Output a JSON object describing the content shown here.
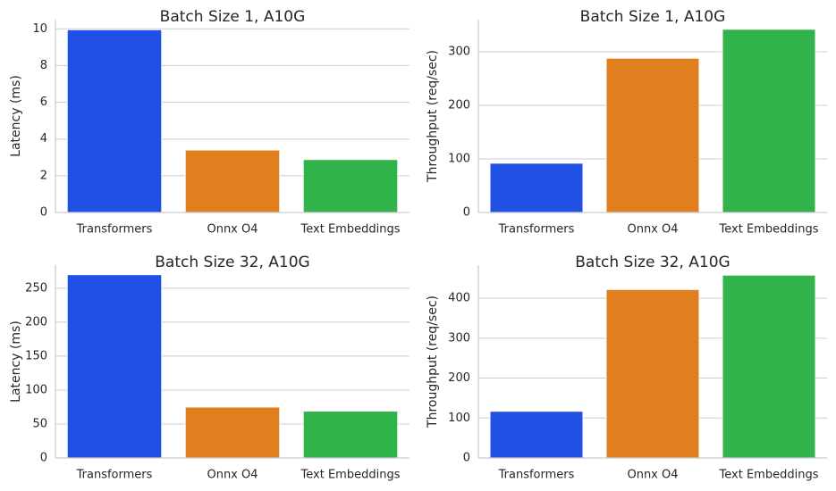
{
  "chart_data": [
    {
      "type": "bar",
      "title": "Batch Size 1, A10G",
      "y_label": "Latency (ms)",
      "categories": [
        "Transformers",
        "Onnx O4",
        "Text Embeddings"
      ],
      "values": [
        9.95,
        3.4,
        2.88
      ],
      "colors": [
        "#2150e4",
        "#e17f1e",
        "#2fb34a"
      ],
      "ylim": [
        0,
        10.5
      ],
      "yticks": [
        0,
        2,
        4,
        6,
        8,
        10
      ],
      "grid": true
    },
    {
      "type": "bar",
      "title": "Batch Size 1, A10G",
      "y_label": "Throughput (req/sec)",
      "categories": [
        "Transformers",
        "Onnx O4",
        "Text Embeddings"
      ],
      "values": [
        92,
        288,
        342
      ],
      "colors": [
        "#2150e4",
        "#e17f1e",
        "#2fb34a"
      ],
      "ylim": [
        0,
        360
      ],
      "yticks": [
        0,
        100,
        200,
        300
      ],
      "grid": true
    },
    {
      "type": "bar",
      "title": "Batch Size 32, A10G",
      "y_label": "Latency (ms)",
      "categories": [
        "Transformers",
        "Onnx O4",
        "Text Embeddings"
      ],
      "values": [
        270,
        75,
        69
      ],
      "colors": [
        "#2150e4",
        "#e17f1e",
        "#2fb34a"
      ],
      "ylim": [
        0,
        284
      ],
      "yticks": [
        0,
        50,
        100,
        150,
        200,
        250
      ],
      "grid": true
    },
    {
      "type": "bar",
      "title": "Batch Size 32, A10G",
      "y_label": "Throughput (req/sec)",
      "categories": [
        "Transformers",
        "Onnx O4",
        "Text Embeddings"
      ],
      "values": [
        117,
        422,
        458
      ],
      "colors": [
        "#2150e4",
        "#e17f1e",
        "#2fb34a"
      ],
      "ylim": [
        0,
        483
      ],
      "yticks": [
        0,
        100,
        200,
        300,
        400
      ],
      "grid": true
    }
  ]
}
